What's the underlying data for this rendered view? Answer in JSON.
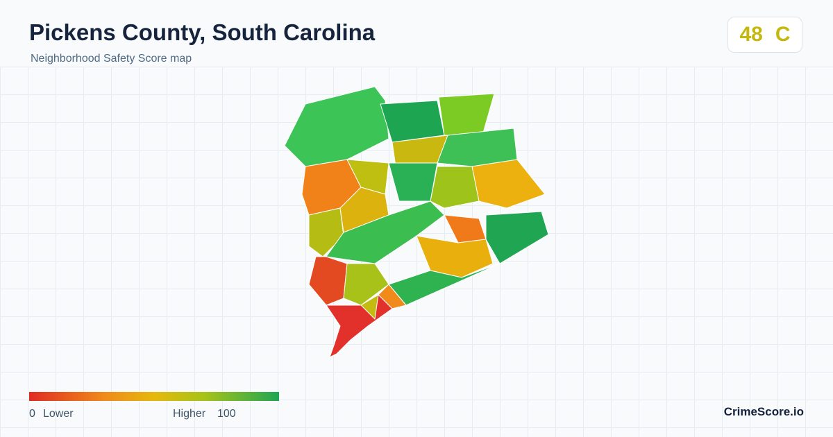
{
  "header": {
    "title": "Pickens County, South Carolina",
    "subtitle": "Neighborhood Safety Score map"
  },
  "badge": {
    "score": 48,
    "grade": "C"
  },
  "legend": {
    "min": 0,
    "low_label": "Lower",
    "high_label": "Higher",
    "max": 100
  },
  "brand": "CrimeScore.io"
}
